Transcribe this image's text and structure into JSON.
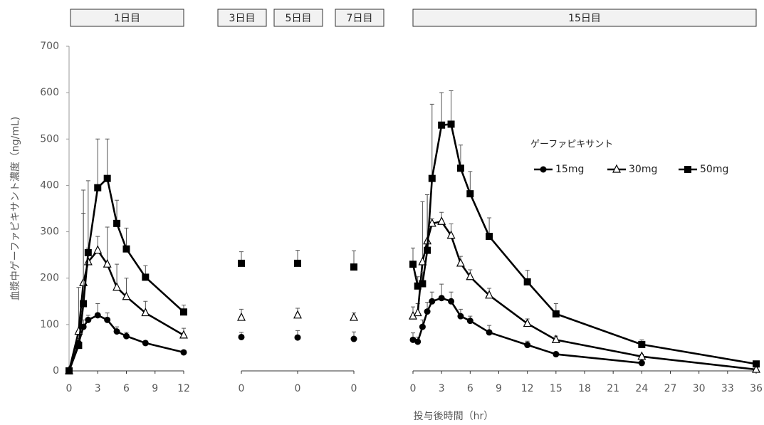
{
  "chart_data": [
    {
      "type": "line",
      "title": "1日目",
      "ylabel": "血漿中ゲーファピキサント濃度（ng/mL)",
      "xlabel": "投与後時間（hr）",
      "x": [
        0,
        1,
        1.5,
        2,
        3,
        4,
        5,
        6,
        8,
        12
      ],
      "xlim": [
        0,
        12
      ],
      "xticks": [
        0,
        3,
        6,
        9,
        12
      ],
      "ylim": [
        0,
        700
      ],
      "yticks": [
        0,
        100,
        200,
        300,
        400,
        500,
        600,
        700
      ],
      "series": [
        {
          "marker": "circle",
          "color": "#000000",
          "values": [
            0,
            60,
            95,
            110,
            120,
            110,
            85,
            75,
            60,
            40
          ],
          "errors": [
            0,
            10,
            15,
            10,
            25,
            15,
            10,
            8,
            5,
            3
          ]
        },
        {
          "marker": "triangle",
          "color": "#000000",
          "values": [
            0,
            85,
            190,
            235,
            260,
            230,
            180,
            160,
            125,
            77
          ],
          "errors": [
            0,
            95,
            150,
            30,
            30,
            80,
            50,
            40,
            25,
            15
          ]
        },
        {
          "marker": "square",
          "color": "#000000",
          "values": [
            0,
            55,
            145,
            255,
            395,
            415,
            318,
            263,
            202,
            127
          ],
          "errors": [
            0,
            0,
            245,
            155,
            105,
            85,
            50,
            45,
            25,
            15
          ]
        }
      ]
    },
    {
      "type": "line",
      "title": "3日目",
      "x": [
        0
      ],
      "xticks": [
        0
      ],
      "ylim": [
        0,
        700
      ],
      "series": [
        {
          "marker": "circle",
          "color": "#000000",
          "values": [
            73
          ],
          "errors": [
            10
          ]
        },
        {
          "marker": "triangle",
          "color": "#000000",
          "values": [
            115
          ],
          "errors": [
            18
          ]
        },
        {
          "marker": "square",
          "color": "#000000",
          "values": [
            232
          ],
          "errors": [
            25
          ]
        }
      ]
    },
    {
      "type": "line",
      "title": "5日目",
      "x": [
        0
      ],
      "xticks": [
        0
      ],
      "ylim": [
        0,
        700
      ],
      "series": [
        {
          "marker": "circle",
          "color": "#000000",
          "values": [
            72
          ],
          "errors": [
            15
          ]
        },
        {
          "marker": "triangle",
          "color": "#000000",
          "values": [
            120
          ],
          "errors": [
            15
          ]
        },
        {
          "marker": "square",
          "color": "#000000",
          "values": [
            232
          ],
          "errors": [
            28
          ]
        }
      ]
    },
    {
      "type": "line",
      "title": "7日目",
      "x": [
        0
      ],
      "xticks": [
        0
      ],
      "ylim": [
        0,
        700
      ],
      "series": [
        {
          "marker": "circle",
          "color": "#000000",
          "values": [
            69
          ],
          "errors": [
            15
          ]
        },
        {
          "marker": "triangle",
          "color": "#000000",
          "values": [
            115
          ],
          "errors": [
            10
          ]
        },
        {
          "marker": "square",
          "color": "#000000",
          "values": [
            224
          ],
          "errors": [
            35
          ]
        }
      ]
    },
    {
      "type": "line",
      "title": "15日目",
      "legend_title": "ゲーファピキサント",
      "x": [
        0,
        0.5,
        1,
        1.5,
        2,
        3,
        4,
        5,
        6,
        8,
        12,
        15,
        24,
        36
      ],
      "xlim": [
        0,
        36
      ],
      "xticks": [
        0,
        3,
        6,
        9,
        12,
        15,
        18,
        21,
        24,
        27,
        30,
        33,
        36
      ],
      "ylim": [
        0,
        700
      ],
      "series": [
        {
          "name": "15mg",
          "marker": "circle",
          "color": "#000000",
          "values": [
            67,
            63,
            95,
            128,
            150,
            157,
            150,
            118,
            108,
            83,
            56,
            36,
            17,
            null
          ],
          "errors": [
            15,
            10,
            15,
            20,
            20,
            30,
            20,
            15,
            10,
            15,
            8,
            5,
            3,
            null
          ]
        },
        {
          "name": "30mg",
          "marker": "triangle",
          "color": "#000000",
          "values": [
            118,
            125,
            235,
            280,
            318,
            322,
            292,
            232,
            203,
            163,
            102,
            67,
            31,
            3
          ],
          "errors": [
            20,
            20,
            130,
            100,
            10,
            20,
            25,
            15,
            15,
            15,
            10,
            8,
            5,
            2
          ]
        },
        {
          "name": "50mg",
          "marker": "square",
          "color": "#000000",
          "values": [
            230,
            183,
            188,
            260,
            415,
            530,
            532,
            437,
            382,
            290,
            192,
            123,
            57,
            15
          ],
          "errors": [
            35,
            20,
            25,
            120,
            160,
            70,
            72,
            50,
            48,
            40,
            25,
            22,
            10,
            3
          ]
        }
      ]
    }
  ]
}
